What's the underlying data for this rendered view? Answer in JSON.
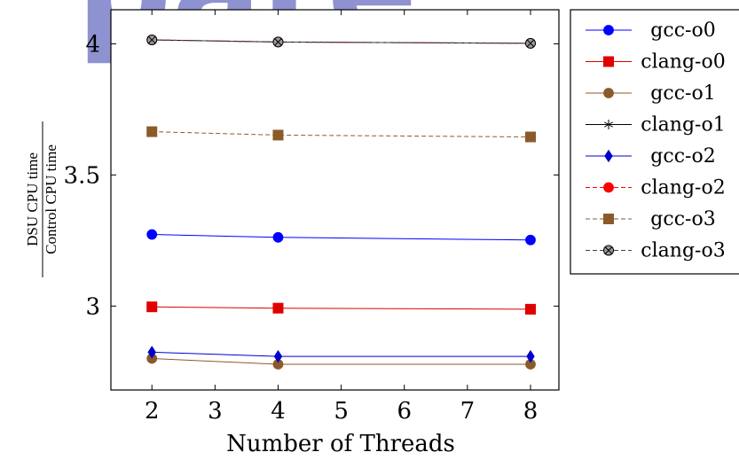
{
  "watermark_text": "r pare",
  "chart_data": {
    "type": "line",
    "xlabel": "Number of Threads",
    "ylabel_numerator": "DSU CPU time",
    "ylabel_denominator": "Control CPU time",
    "xlim": [
      1.35,
      8.45
    ],
    "ylim": [
      2.68,
      4.13
    ],
    "xticks": [
      2,
      3,
      4,
      5,
      6,
      7,
      8
    ],
    "yticks": [
      3,
      3.5,
      4
    ],
    "ytick_labels": [
      "3",
      "3.5",
      "4"
    ],
    "x": [
      2,
      4,
      8
    ],
    "grid": false,
    "legend_position": "outside-right",
    "series": [
      {
        "name": "gcc-o0",
        "values": [
          3.273,
          3.262,
          3.252
        ],
        "color": "#0000ff",
        "marker": "circle",
        "dash": "solid"
      },
      {
        "name": "clang-o0",
        "values": [
          2.997,
          2.992,
          2.988
        ],
        "color": "#e00000",
        "marker": "square",
        "dash": "solid"
      },
      {
        "name": "gcc-o1",
        "values": [
          2.8,
          2.778,
          2.778
        ],
        "color": "#8b5a2b",
        "marker": "circle",
        "dash": "solid"
      },
      {
        "name": "clang-o1",
        "values": [
          4.015,
          4.007,
          4.002
        ],
        "color": "#000000",
        "marker": "star",
        "dash": "solid"
      },
      {
        "name": "gcc-o2",
        "values": [
          2.824,
          2.808,
          2.808
        ],
        "color": "#0000cc",
        "marker": "diamond",
        "dash": "solid"
      },
      {
        "name": "clang-o2",
        "values": [
          4.015,
          4.007,
          4.002
        ],
        "color": "#ff0000",
        "marker": "circle",
        "dash": "dashed"
      },
      {
        "name": "gcc-o3",
        "values": [
          3.665,
          3.652,
          3.645
        ],
        "color": "#8b5a2b",
        "marker": "square",
        "dash": "dashed"
      },
      {
        "name": "clang-o3",
        "values": [
          4.015,
          4.007,
          4.002
        ],
        "color": "#444444",
        "marker": "circle-cross",
        "dash": "dashed"
      }
    ]
  }
}
